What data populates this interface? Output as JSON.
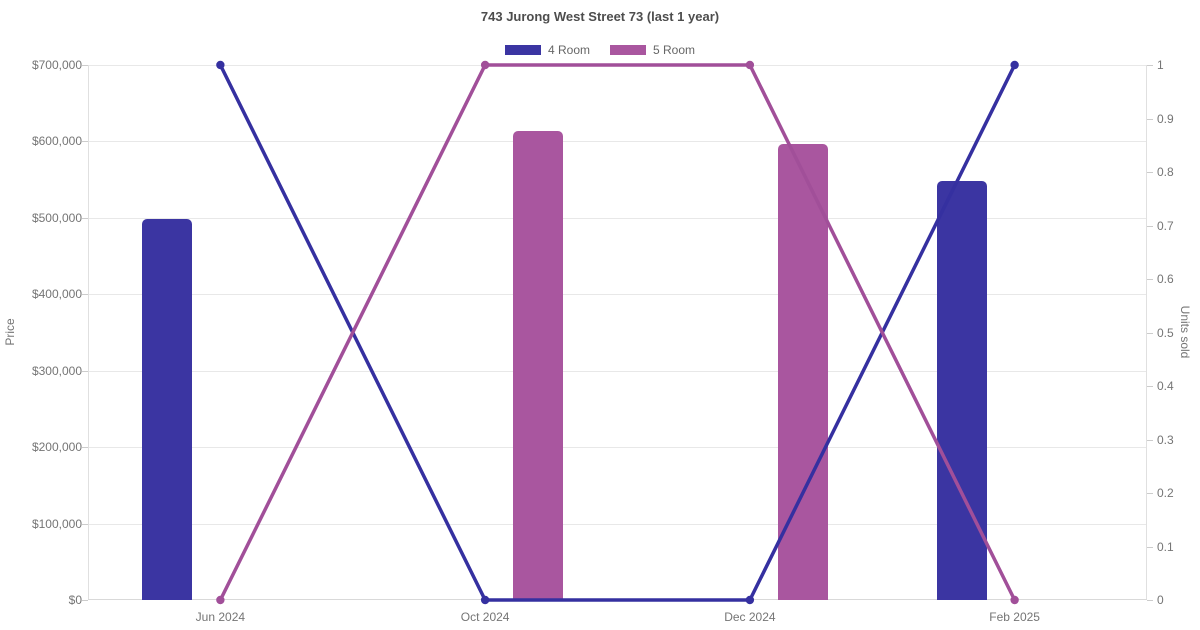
{
  "chart_data": {
    "type": "combo-bar-line",
    "title": "743 Jurong West Street 73 (last 1 year)",
    "categories": [
      "Jun 2024",
      "Oct 2024",
      "Dec 2024",
      "Feb 2025"
    ],
    "series": [
      {
        "name": "4 Room",
        "bar_color": "#3b35a2",
        "line_color": "#3530a0",
        "bar_prices": [
          498000,
          null,
          null,
          548600
        ],
        "line_units_sold": [
          1,
          0,
          0,
          1
        ]
      },
      {
        "name": "5 Room",
        "bar_color": "#a9569f",
        "line_color": "#a14f99",
        "bar_prices": [
          null,
          613600,
          596200,
          null
        ],
        "line_units_sold": [
          0,
          1,
          1,
          0
        ]
      }
    ],
    "left_axis": {
      "label": "Price",
      "min": 0,
      "max": 700000,
      "tick_step": 100000,
      "tick_labels": [
        "$0",
        "$100,000",
        "$200,000",
        "$300,000",
        "$400,000",
        "$500,000",
        "$600,000",
        "$700,000"
      ]
    },
    "right_axis": {
      "label": "Units sold",
      "min": 0,
      "max": 1,
      "tick_step": 0.1,
      "tick_labels": [
        "0",
        "0.1",
        "0.2",
        "0.3",
        "0.4",
        "0.5",
        "0.6",
        "0.7",
        "0.8",
        "0.9",
        "1"
      ]
    },
    "legend": {
      "position": "top"
    },
    "grid": true,
    "colors": {
      "background": "#ffffff",
      "gridline": "#e8e8e8",
      "axis_line": "#dcdcdc",
      "tick": "#cccccc",
      "tick_label": "#757575",
      "title": "#4d4d4d",
      "legend_text": "#666666"
    }
  }
}
